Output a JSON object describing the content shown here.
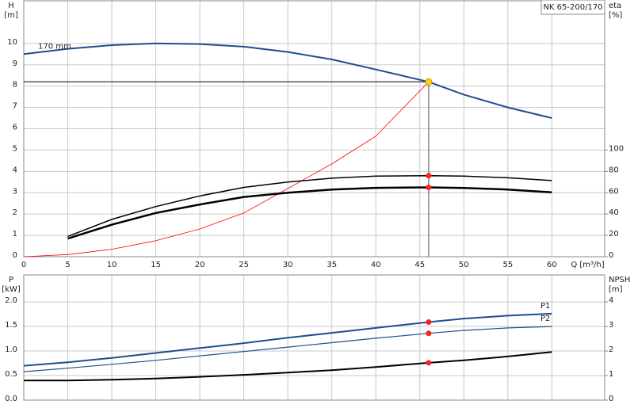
{
  "chart_data": [
    {
      "type": "line",
      "title": "NK 65-200/170",
      "ylabel": "H",
      "yunit": "[m]",
      "y2label": "eta",
      "y2unit": "[%]",
      "xlabel": "Q [m³/h]",
      "x": [
        0,
        5,
        10,
        15,
        20,
        25,
        30,
        35,
        40,
        46,
        50,
        55,
        60
      ],
      "xlim": [
        0,
        66
      ],
      "xticks": [
        0,
        5,
        10,
        15,
        20,
        25,
        30,
        35,
        40,
        45,
        50,
        55,
        60
      ],
      "ylim": [
        0,
        12
      ],
      "yticks": [
        0,
        1,
        2,
        3,
        4,
        5,
        6,
        7,
        8,
        9,
        10
      ],
      "y2lim": [
        0,
        240
      ],
      "y2ticks": [
        0,
        20,
        40,
        60,
        80,
        100
      ],
      "grid": true,
      "duty_point": {
        "q": 46,
        "h": 8.2,
        "color": "#ffd21f"
      },
      "series": [
        {
          "name": "170 mm",
          "label_at": "start",
          "color": "#1f4e8c",
          "line_width": 2,
          "values": [
            9.5,
            9.75,
            9.92,
            10.0,
            9.97,
            9.85,
            9.6,
            9.25,
            8.78,
            8.2,
            7.6,
            7.0,
            6.5
          ]
        },
        {
          "color": "#ff0000",
          "line_width": 0.8,
          "marker": false,
          "values": [
            0,
            0.1,
            0.35,
            0.75,
            1.3,
            2.05,
            3.2,
            4.35,
            5.65,
            8.2,
            null,
            null,
            null
          ]
        },
        {
          "color": "#000000",
          "line_width": 1.5,
          "axis": "y2",
          "marker": true,
          "marker_color": "#ff2020",
          "values": [
            null,
            19,
            35,
            47,
            57,
            65,
            70,
            73.6,
            75.6,
            76,
            75.6,
            74,
            71.4
          ]
        },
        {
          "color": "#000000",
          "line_width": 2.5,
          "axis": "y2",
          "marker": true,
          "marker_color": "#ff2020",
          "values": [
            null,
            17,
            30,
            41,
            49,
            56,
            60,
            63,
            64.6,
            65,
            64.4,
            63,
            60.4
          ]
        }
      ]
    },
    {
      "type": "line",
      "ylabel": "P",
      "yunit": "[kW]",
      "y2label": "NPSH",
      "y2unit": "[m]",
      "x": [
        0,
        5,
        10,
        15,
        20,
        25,
        30,
        35,
        40,
        46,
        50,
        55,
        60
      ],
      "xlim": [
        0,
        66
      ],
      "xticks": [
        0,
        5,
        10,
        15,
        20,
        25,
        30,
        35,
        40,
        45,
        50,
        55,
        60
      ],
      "ylim": [
        0,
        2.55
      ],
      "yticks": [
        {
          "value": 0,
          "label": "0.0"
        },
        0.5,
        {
          "value": 1,
          "label": "1.0"
        },
        1.5,
        {
          "value": 2,
          "label": "2.0"
        }
      ],
      "y2lim": [
        0,
        5.1
      ],
      "y2ticks": [
        0,
        1,
        2,
        3,
        4
      ],
      "grid": true,
      "duty_point": {
        "q": 46
      },
      "series": [
        {
          "name": "P1",
          "label_at": "end",
          "color": "#1f4e8c",
          "line_width": 2,
          "marker": true,
          "marker_color": "#ff2020",
          "values": [
            0.7,
            0.77,
            0.86,
            0.96,
            1.06,
            1.16,
            1.27,
            1.37,
            1.47,
            1.59,
            1.66,
            1.72,
            1.76
          ]
        },
        {
          "name": "P2",
          "label_at": "end",
          "color": "#1f4e8c",
          "line_width": 1.2,
          "marker": true,
          "marker_color": "#ff2020",
          "values": [
            0.58,
            0.65,
            0.73,
            0.81,
            0.9,
            0.99,
            1.08,
            1.17,
            1.26,
            1.36,
            1.42,
            1.47,
            1.5
          ]
        },
        {
          "color": "#000000",
          "line_width": 2,
          "axis": "y2",
          "marker": true,
          "marker_color": "#ff2020",
          "values": [
            0.8,
            0.8,
            0.83,
            0.88,
            0.95,
            1.03,
            1.12,
            1.22,
            1.35,
            1.52,
            1.62,
            1.78,
            1.96
          ]
        }
      ]
    }
  ]
}
